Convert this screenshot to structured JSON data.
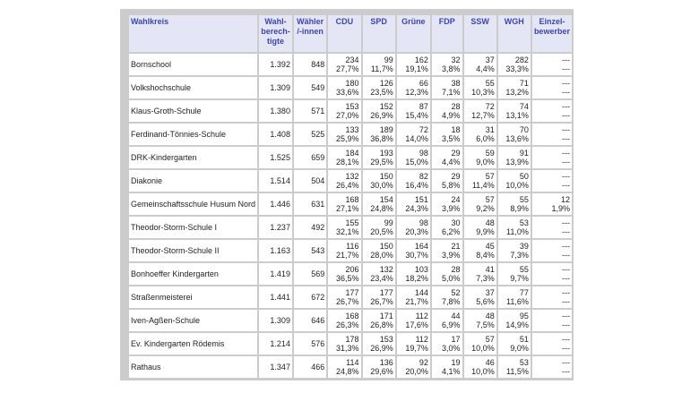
{
  "headers": [
    "Wahlkreis",
    "Wahl-berech-tigte",
    "Wähler /-innen",
    "CDU",
    "SPD",
    "Grüne",
    "FDP",
    "SSW",
    "WGH",
    "Einzel-bewerber"
  ],
  "rows": [
    {
      "name": "Bornschool",
      "wb": "1.392",
      "wa": "848",
      "parties": [
        [
          "234",
          "27,7%"
        ],
        [
          "99",
          "11,7%"
        ],
        [
          "162",
          "19,1%"
        ],
        [
          "32",
          "3,8%"
        ],
        [
          "37",
          "4,4%"
        ],
        [
          "282",
          "33,3%"
        ],
        [
          "---",
          "---"
        ]
      ]
    },
    {
      "name": "Volkshochschule",
      "wb": "1.309",
      "wa": "549",
      "parties": [
        [
          "180",
          "33,6%"
        ],
        [
          "126",
          "23,5%"
        ],
        [
          "66",
          "12,3%"
        ],
        [
          "38",
          "7,1%"
        ],
        [
          "55",
          "10,3%"
        ],
        [
          "71",
          "13,2%"
        ],
        [
          "---",
          "---"
        ]
      ]
    },
    {
      "name": "Klaus-Groth-Schule",
      "wb": "1.380",
      "wa": "571",
      "parties": [
        [
          "153",
          "27,0%"
        ],
        [
          "152",
          "26,9%"
        ],
        [
          "87",
          "15,4%"
        ],
        [
          "28",
          "4,9%"
        ],
        [
          "72",
          "12,7%"
        ],
        [
          "74",
          "13,1%"
        ],
        [
          "---",
          "---"
        ]
      ]
    },
    {
      "name": "Ferdinand-Tönnies-Schule",
      "wb": "1.408",
      "wa": "525",
      "parties": [
        [
          "133",
          "25,9%"
        ],
        [
          "189",
          "36,8%"
        ],
        [
          "72",
          "14,0%"
        ],
        [
          "18",
          "3,5%"
        ],
        [
          "31",
          "6,0%"
        ],
        [
          "70",
          "13,6%"
        ],
        [
          "---",
          "---"
        ]
      ]
    },
    {
      "name": "DRK-Kindergarten",
      "wb": "1.525",
      "wa": "659",
      "parties": [
        [
          "184",
          "28,1%"
        ],
        [
          "193",
          "29,5%"
        ],
        [
          "98",
          "15,0%"
        ],
        [
          "29",
          "4,4%"
        ],
        [
          "59",
          "9,0%"
        ],
        [
          "91",
          "13,9%"
        ],
        [
          "---",
          "---"
        ]
      ]
    },
    {
      "name": "Diakonie",
      "wb": "1.514",
      "wa": "504",
      "parties": [
        [
          "132",
          "26,4%"
        ],
        [
          "150",
          "30,0%"
        ],
        [
          "82",
          "16,4%"
        ],
        [
          "29",
          "5,8%"
        ],
        [
          "57",
          "11,4%"
        ],
        [
          "50",
          "10,0%"
        ],
        [
          "---",
          "---"
        ]
      ]
    },
    {
      "name": "Gemeinschaftsschule Husum Nord",
      "wb": "1.446",
      "wa": "631",
      "parties": [
        [
          "168",
          "27,1%"
        ],
        [
          "154",
          "24,8%"
        ],
        [
          "151",
          "24,3%"
        ],
        [
          "24",
          "3,9%"
        ],
        [
          "57",
          "9,2%"
        ],
        [
          "55",
          "8,9%"
        ],
        [
          "12",
          "1,9%"
        ]
      ]
    },
    {
      "name": "Theodor-Storm-Schule I",
      "wb": "1.237",
      "wa": "492",
      "parties": [
        [
          "155",
          "32,1%"
        ],
        [
          "99",
          "20,5%"
        ],
        [
          "98",
          "20,3%"
        ],
        [
          "30",
          "6,2%"
        ],
        [
          "48",
          "9,9%"
        ],
        [
          "53",
          "11,0%"
        ],
        [
          "---",
          "---"
        ]
      ]
    },
    {
      "name": "Theodor-Storm-Schule II",
      "wb": "1.163",
      "wa": "543",
      "parties": [
        [
          "116",
          "21,7%"
        ],
        [
          "150",
          "28,0%"
        ],
        [
          "164",
          "30,7%"
        ],
        [
          "21",
          "3,9%"
        ],
        [
          "45",
          "8,4%"
        ],
        [
          "39",
          "7,3%"
        ],
        [
          "---",
          "---"
        ]
      ]
    },
    {
      "name": "Bonhoeffer Kindergarten",
      "wb": "1.419",
      "wa": "569",
      "parties": [
        [
          "206",
          "36,5%"
        ],
        [
          "132",
          "23,4%"
        ],
        [
          "103",
          "18,2%"
        ],
        [
          "28",
          "5,0%"
        ],
        [
          "41",
          "7,3%"
        ],
        [
          "55",
          "9,7%"
        ],
        [
          "---",
          "---"
        ]
      ]
    },
    {
      "name": "Straßenmeisterei",
      "wb": "1.441",
      "wa": "672",
      "parties": [
        [
          "177",
          "26,7%"
        ],
        [
          "177",
          "26,7%"
        ],
        [
          "144",
          "21,7%"
        ],
        [
          "52",
          "7,8%"
        ],
        [
          "37",
          "5,6%"
        ],
        [
          "77",
          "11,6%"
        ],
        [
          "---",
          "---"
        ]
      ]
    },
    {
      "name": "Iven-Agßen-Schule",
      "wb": "1.309",
      "wa": "646",
      "parties": [
        [
          "168",
          "26,3%"
        ],
        [
          "171",
          "26,8%"
        ],
        [
          "112",
          "17,6%"
        ],
        [
          "44",
          "6,9%"
        ],
        [
          "48",
          "7,5%"
        ],
        [
          "95",
          "14,9%"
        ],
        [
          "---",
          "---"
        ]
      ]
    },
    {
      "name": "Ev. Kindergarten Rödemis",
      "wb": "1.214",
      "wa": "576",
      "parties": [
        [
          "178",
          "31,3%"
        ],
        [
          "153",
          "26,9%"
        ],
        [
          "112",
          "19,7%"
        ],
        [
          "17",
          "3,0%"
        ],
        [
          "57",
          "10,0%"
        ],
        [
          "51",
          "9,0%"
        ],
        [
          "---",
          "---"
        ]
      ]
    },
    {
      "name": "Rathaus",
      "wb": "1.347",
      "wa": "466",
      "parties": [
        [
          "114",
          "24,8%"
        ],
        [
          "136",
          "29,6%"
        ],
        [
          "92",
          "20,0%"
        ],
        [
          "19",
          "4,1%"
        ],
        [
          "46",
          "10,0%"
        ],
        [
          "53",
          "11,5%"
        ],
        [
          "---",
          "---"
        ]
      ]
    }
  ]
}
